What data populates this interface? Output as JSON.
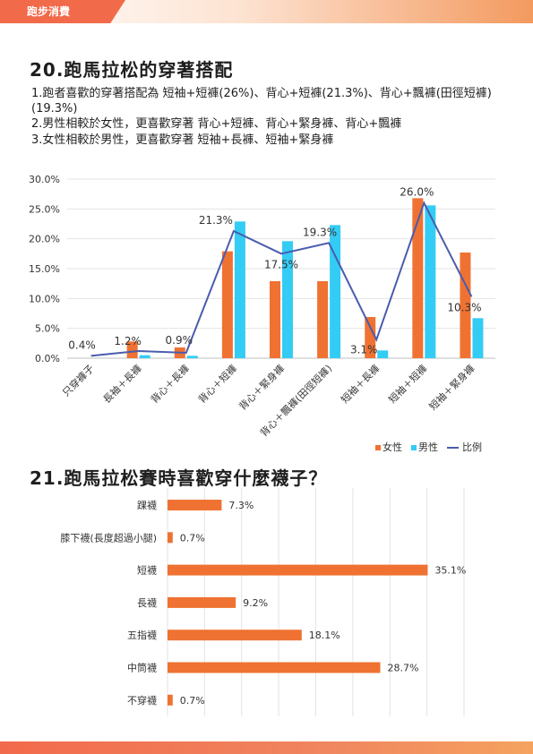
{
  "header": {
    "section": "跑步消費"
  },
  "q20": {
    "title": "20.跑馬拉松的穿著搭配",
    "notes": [
      "1.跑者喜歡的穿著搭配為 短袖+短褲(26%)、背心+短褲(21.3%)、背心+飄褲(田徑短褲)(19.3%)",
      "2.男性相較於女性，更喜歡穿著 背心+短褲、背心+緊身褲、背心+飄褲",
      "3.女性相較於男性，更喜歡穿著 短袖+長褲、短袖+緊身褲"
    ]
  },
  "q21": {
    "title": "21.跑馬拉松賽時喜歡穿什麼襪子？"
  },
  "colors": {
    "female": "#ef7232",
    "male": "#33ccf4",
    "ratio": "#4a5cad",
    "bar": "#ef7232"
  },
  "chart_data": [
    {
      "type": "bar",
      "categories": [
        "只穿褲子",
        "長袖＋長褲",
        "背心＋長褲",
        "背心＋短褲",
        "背心＋緊身褲",
        "背心＋飄褲(田徑短褲)",
        "短袖＋長褲",
        "短袖＋短褲",
        "短袖＋緊身褲"
      ],
      "series": [
        {
          "name": "女性",
          "values": [
            0.0,
            2.8,
            1.8,
            17.9,
            12.9,
            12.9,
            6.9,
            26.8,
            17.7
          ]
        },
        {
          "name": "男性",
          "values": [
            0.0,
            0.5,
            0.4,
            22.9,
            19.6,
            22.3,
            1.3,
            25.6,
            6.7
          ]
        },
        {
          "name": "比例",
          "type": "line",
          "values": [
            0.4,
            1.2,
            0.9,
            21.3,
            17.5,
            19.3,
            3.1,
            26.0,
            10.3
          ],
          "labels": [
            "0.4%",
            "1.2%",
            "0.9%",
            "21.3%",
            "17.5%",
            "19.3%",
            "3.1%",
            "26.0%",
            "10.3%"
          ]
        }
      ],
      "yticks": [
        "0.0%",
        "5.0%",
        "10.0%",
        "15.0%",
        "20.0%",
        "25.0%",
        "30.0%"
      ],
      "ylim": [
        0,
        30
      ],
      "legend": "bottom-right"
    },
    {
      "type": "bar",
      "orientation": "horizontal",
      "categories": [
        "踝襪",
        "膝下襪(長度超過小腿)",
        "短襪",
        "長襪",
        "五指襪",
        "中筒襪",
        "不穿襪"
      ],
      "values": [
        7.3,
        0.7,
        35.1,
        9.2,
        18.1,
        28.7,
        0.7
      ],
      "labels": [
        "7.3%",
        "0.7%",
        "35.1%",
        "9.2%",
        "18.1%",
        "28.7%",
        "0.7%"
      ],
      "xlim": [
        0,
        40
      ]
    }
  ]
}
